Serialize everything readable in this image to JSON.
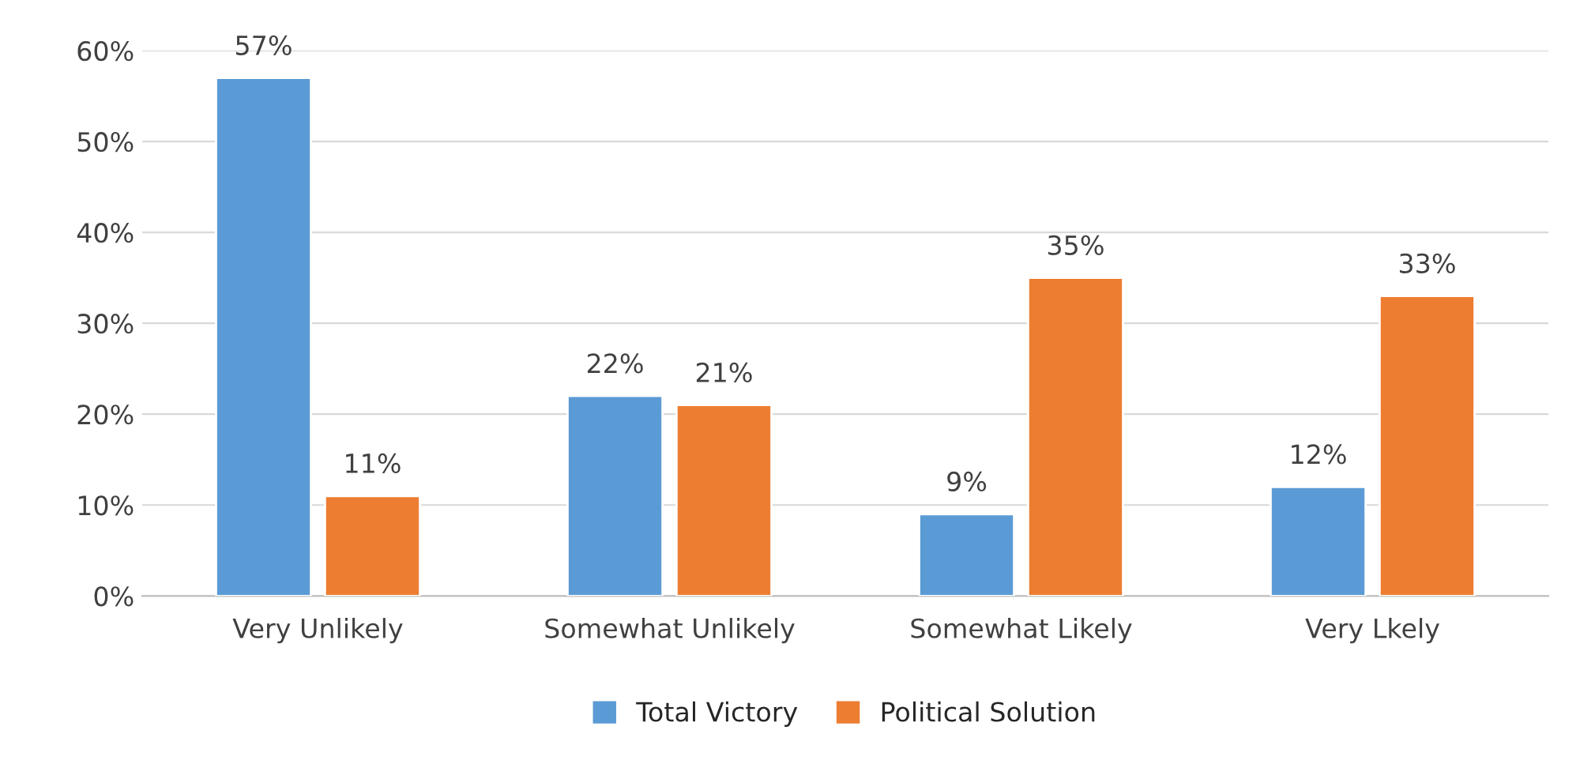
{
  "chart_data": {
    "type": "bar",
    "categories": [
      "Very Unlikely",
      "Somewhat Unlikely",
      "Somewhat Likely",
      "Very Lkely"
    ],
    "series": [
      {
        "name": "Total Victory",
        "color": "#5b9bd5",
        "values": [
          57,
          22,
          9,
          12
        ],
        "value_labels": [
          "57%",
          "22%",
          "9%",
          "12%"
        ]
      },
      {
        "name": "Political Solution",
        "color": "#ed7d31",
        "values": [
          11,
          21,
          35,
          33
        ],
        "value_labels": [
          "11%",
          "21%",
          "35%",
          "33%"
        ]
      }
    ],
    "ylim": [
      0,
      60
    ],
    "yticks": [
      {
        "value": 0,
        "label": "0%"
      },
      {
        "value": 10,
        "label": "10%"
      },
      {
        "value": 20,
        "label": "20%"
      },
      {
        "value": 30,
        "label": "30%"
      },
      {
        "value": 40,
        "label": "40%"
      },
      {
        "value": 50,
        "label": "50%"
      },
      {
        "value": 60,
        "label": "60%"
      }
    ],
    "grid": "y",
    "legend": "bottom"
  }
}
